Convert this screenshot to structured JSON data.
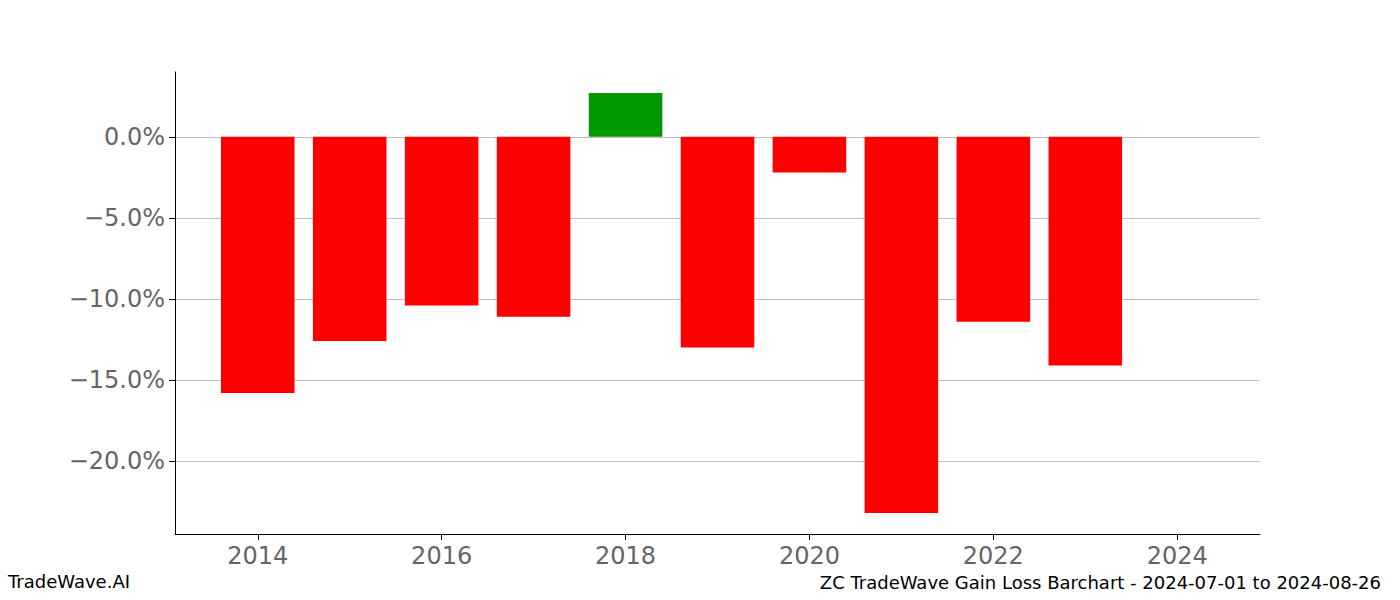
{
  "chart_data": {
    "type": "bar",
    "title": "ZC TradeWave Gain Loss Barchart - 2024-07-01 to 2024-08-26",
    "annotations": [
      "TradeWave.AI"
    ],
    "x": [
      2014,
      2015,
      2016,
      2017,
      2018,
      2019,
      2020,
      2021,
      2022,
      2023
    ],
    "values": [
      -15.8,
      -12.6,
      -10.4,
      -11.1,
      2.7,
      -13.0,
      -2.2,
      -23.2,
      -11.4,
      -14.1
    ],
    "colors": [
      "#ff0000",
      "#ff0000",
      "#ff0000",
      "#ff0000",
      "#009900",
      "#ff0000",
      "#ff0000",
      "#ff0000",
      "#ff0000",
      "#ff0000"
    ],
    "xlim": [
      2013.1,
      2024.9
    ],
    "xticks": [
      2014,
      2016,
      2018,
      2020,
      2022,
      2024
    ],
    "ylim": [
      -24.5,
      4.0
    ],
    "yticks": [
      {
        "value": -20,
        "label": "−20.0%"
      },
      {
        "value": -15,
        "label": "−15.0%"
      },
      {
        "value": -10,
        "label": "−10.0%"
      },
      {
        "value": -5,
        "label": "−5.0%"
      },
      {
        "value": 0,
        "label": "0.0%"
      }
    ],
    "grid": true
  }
}
